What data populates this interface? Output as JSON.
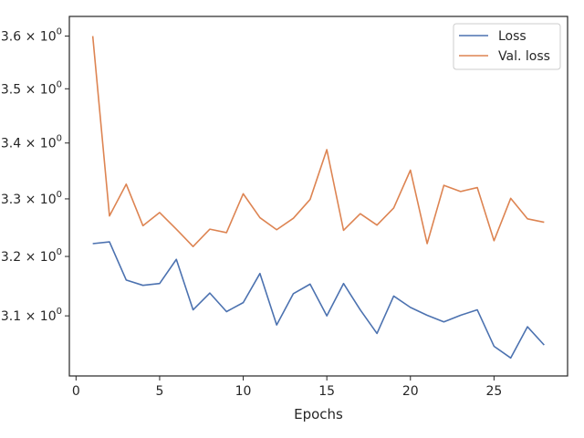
{
  "chart_data": {
    "type": "line",
    "title": "",
    "xlabel": "Epochs",
    "ylabel": "",
    "yscale": "log",
    "xlim": [
      -0.4,
      29.4
    ],
    "ylim": [
      3.002,
      3.638
    ],
    "x_ticks": [
      0,
      5,
      10,
      15,
      20,
      25
    ],
    "y_ticks": [
      {
        "value": 3.1,
        "mantissa": "3.1",
        "base": "10",
        "exp": "0"
      },
      {
        "value": 3.2,
        "mantissa": "3.2",
        "base": "10",
        "exp": "0"
      },
      {
        "value": 3.3,
        "mantissa": "3.3",
        "base": "10",
        "exp": "0"
      },
      {
        "value": 3.4,
        "mantissa": "3.4",
        "base": "10",
        "exp": "0"
      },
      {
        "value": 3.5,
        "mantissa": "3.5",
        "base": "10",
        "exp": "0"
      },
      {
        "value": 3.6,
        "mantissa": "3.6",
        "base": "10",
        "exp": "0"
      }
    ],
    "x": [
      1,
      2,
      3,
      4,
      5,
      6,
      7,
      8,
      9,
      10,
      11,
      12,
      13,
      14,
      15,
      16,
      17,
      18,
      19,
      20,
      21,
      22,
      23,
      24,
      25,
      26,
      27,
      28
    ],
    "series": [
      {
        "name": "Loss",
        "color": "#4c72b0",
        "values": [
          3.222,
          3.225,
          3.16,
          3.151,
          3.154,
          3.195,
          3.11,
          3.138,
          3.107,
          3.122,
          3.171,
          3.085,
          3.137,
          3.153,
          3.1,
          3.154,
          3.11,
          3.071,
          3.133,
          3.114,
          3.101,
          3.09,
          3.101,
          3.11,
          3.05,
          3.031,
          3.082,
          3.052
        ]
      },
      {
        "name": "Val. loss",
        "color": "#dd8452",
        "values": [
          3.6,
          3.27,
          3.326,
          3.253,
          3.276,
          3.247,
          3.217,
          3.247,
          3.241,
          3.309,
          3.267,
          3.246,
          3.266,
          3.299,
          3.388,
          3.245,
          3.274,
          3.254,
          3.284,
          3.351,
          3.222,
          3.324,
          3.313,
          3.32,
          3.227,
          3.301,
          3.265,
          3.259
        ]
      }
    ],
    "legend": {
      "position": "top-right"
    },
    "grid": false
  }
}
